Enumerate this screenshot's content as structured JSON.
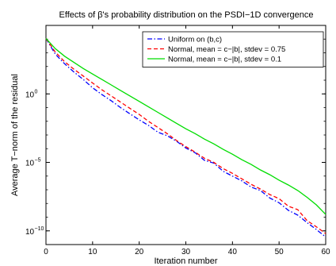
{
  "chart_data": {
    "type": "line",
    "title": "Effects of  β's probability distribution on the PSDI−1D convergence",
    "xlabel": "Iteration number",
    "ylabel": "Average T−norm of the residual",
    "xlim": [
      0,
      60
    ],
    "ylim_log10": [
      -11,
      5
    ],
    "yscale": "log",
    "xticks": [
      "0",
      "10",
      "20",
      "30",
      "40",
      "50",
      "60"
    ],
    "yticks": [
      {
        "base": "10",
        "exp": "0",
        "log10": 0
      },
      {
        "base": "10",
        "exp": "−5",
        "log10": -5
      },
      {
        "base": "10",
        "exp": "−10",
        "log10": -10
      }
    ],
    "grid": false,
    "legend_position": "top-right",
    "series": [
      {
        "name": "Uniform on (b,c)",
        "color": "#0000ff",
        "dash": "dashdot",
        "x": [
          0,
          2,
          4,
          6,
          8,
          10,
          12,
          14,
          16,
          18,
          20,
          22,
          24,
          26,
          28,
          30,
          32,
          34,
          36,
          38,
          40,
          42,
          44,
          46,
          48,
          50,
          52,
          54,
          56,
          58,
          60
        ],
        "log10_y": [
          4.05,
          2.9,
          2.2,
          1.6,
          1.05,
          0.45,
          -0.05,
          -0.5,
          -1.0,
          -1.45,
          -1.9,
          -2.3,
          -2.8,
          -3.05,
          -3.45,
          -3.95,
          -4.3,
          -4.85,
          -5.05,
          -5.65,
          -6.0,
          -6.35,
          -6.8,
          -7.05,
          -7.6,
          -7.95,
          -8.5,
          -8.85,
          -9.4,
          -9.9,
          -10.45
        ]
      },
      {
        "name": "Normal, mean = c−|b|, stdev = 0.75",
        "color": "#ff0000",
        "dash": "dash",
        "x": [
          0,
          2,
          4,
          6,
          8,
          10,
          12,
          14,
          16,
          18,
          20,
          22,
          24,
          26,
          28,
          30,
          32,
          34,
          36,
          38,
          40,
          42,
          44,
          46,
          48,
          50,
          52,
          54,
          56,
          58,
          60
        ],
        "log10_y": [
          4.05,
          3.05,
          2.35,
          1.8,
          1.3,
          0.8,
          0.3,
          -0.15,
          -0.6,
          -1.05,
          -1.5,
          -2.0,
          -2.45,
          -2.9,
          -3.4,
          -3.85,
          -4.25,
          -4.7,
          -5.0,
          -5.45,
          -5.8,
          -6.2,
          -6.6,
          -6.95,
          -7.35,
          -7.65,
          -8.2,
          -8.45,
          -9.25,
          -9.7,
          -10.2
        ]
      },
      {
        "name": "Normal, mean = c−|b|, stdev = 0.1",
        "color": "#00dd00",
        "dash": "solid",
        "x": [
          0,
          2,
          4,
          6,
          8,
          10,
          12,
          14,
          16,
          18,
          20,
          22,
          24,
          26,
          28,
          30,
          32,
          34,
          36,
          38,
          40,
          42,
          44,
          46,
          48,
          50,
          52,
          54,
          56,
          58,
          60
        ],
        "log10_y": [
          4.05,
          3.3,
          2.75,
          2.3,
          1.85,
          1.45,
          1.05,
          0.65,
          0.25,
          -0.15,
          -0.55,
          -0.95,
          -1.35,
          -1.75,
          -2.15,
          -2.55,
          -2.9,
          -3.3,
          -3.65,
          -4.05,
          -4.4,
          -4.8,
          -5.15,
          -5.55,
          -5.9,
          -6.3,
          -6.65,
          -7.05,
          -7.55,
          -8.1,
          -8.8
        ]
      }
    ]
  }
}
